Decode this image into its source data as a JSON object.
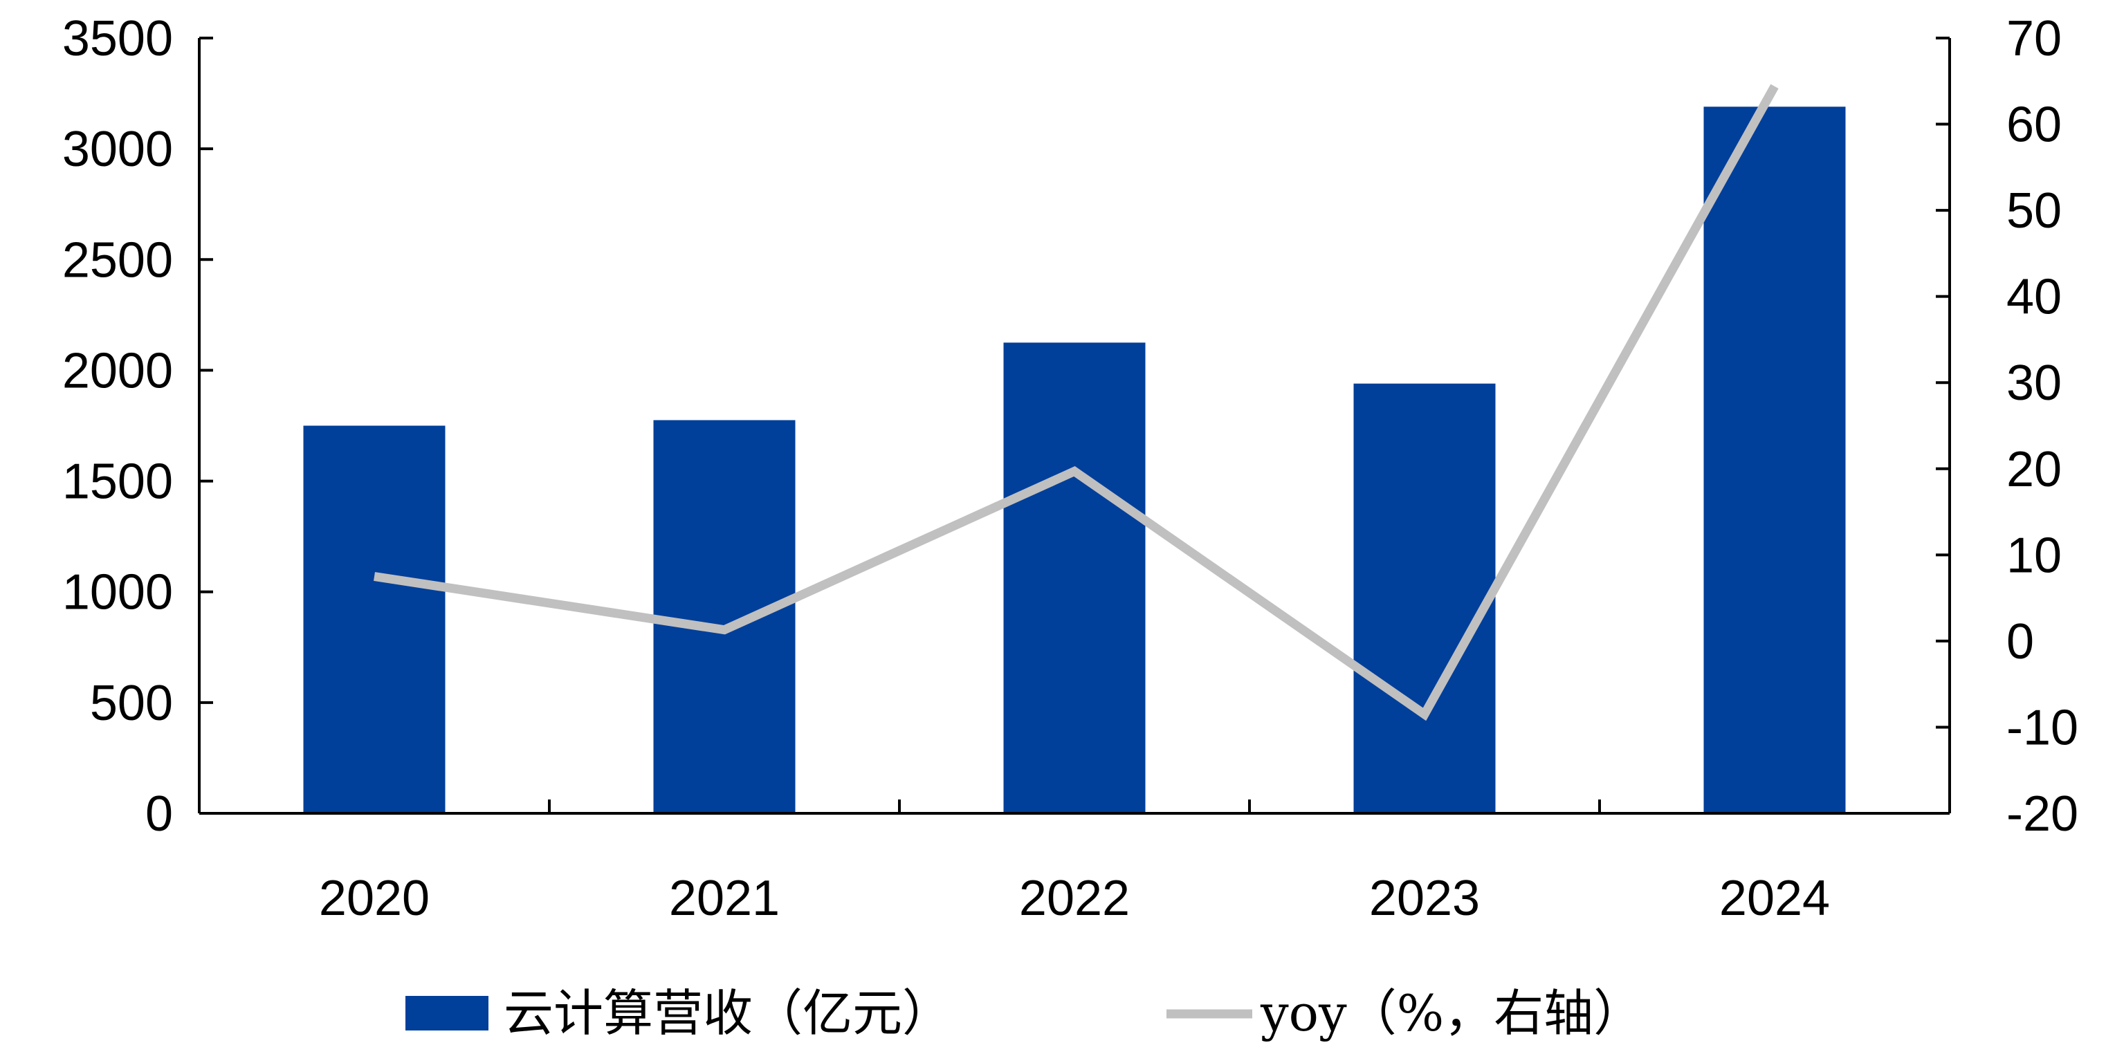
{
  "chart_data": {
    "type": "bar",
    "categories": [
      "2020",
      "2021",
      "2022",
      "2023",
      "2024"
    ],
    "series": [
      {
        "name": "云计算营收（亿元）",
        "type": "bar",
        "axis": "left",
        "values": [
          1750,
          1775,
          2125,
          1940,
          3190
        ],
        "color": "#003F9A"
      },
      {
        "name": "yoy（%，右轴）",
        "type": "line",
        "axis": "right",
        "values": [
          7.5,
          1.3,
          19.7,
          -8.5,
          64.4
        ],
        "color": "#C0C0C0"
      }
    ],
    "y_left": {
      "min": 0,
      "max": 3500,
      "step": 500,
      "ticks": [
        "0",
        "500",
        "1000",
        "1500",
        "2000",
        "2500",
        "3000",
        "3500"
      ]
    },
    "y_right": {
      "min": -20,
      "max": 70,
      "step": 10,
      "ticks": [
        "-20",
        "-10",
        "0",
        "10",
        "20",
        "30",
        "40",
        "50",
        "60",
        "70"
      ]
    },
    "title": "",
    "xlabel": "",
    "ylabel": "",
    "grid": false,
    "legend_position": "bottom"
  }
}
